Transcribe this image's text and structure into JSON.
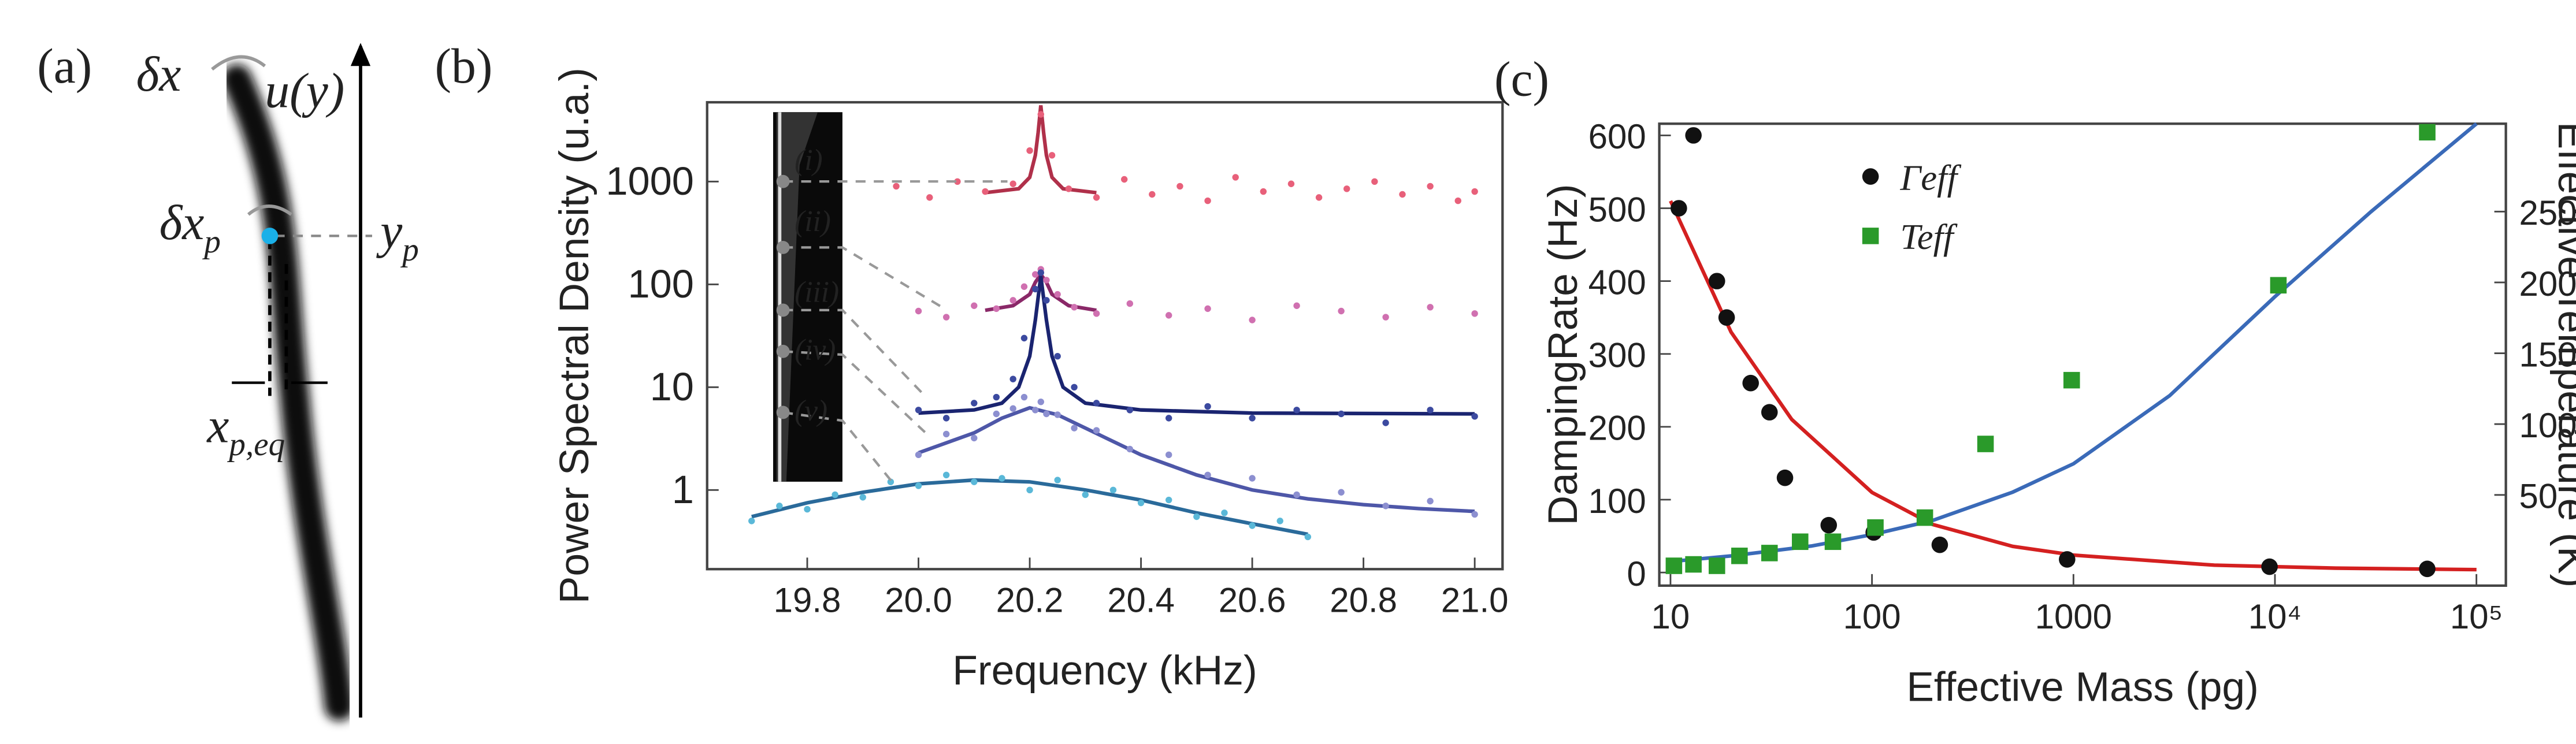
{
  "panels": {
    "a": {
      "label": "(a)",
      "dx": "δx",
      "uy": "u(y)",
      "dxp": {
        "base": "δx",
        "sub": "p"
      },
      "yp": {
        "base": "y",
        "sub": "p"
      },
      "xpeq": {
        "base": "x",
        "sub": "p,eq"
      }
    }
  },
  "chart_data": [
    {
      "type": "scatter",
      "panel": "(b)",
      "ylog": true,
      "xlabel": "Frequency (kHz)",
      "ylabel": "Power Spectral Density (u.a.)",
      "xlim": [
        19.62,
        21.05
      ],
      "ylim": [
        0.17,
        5900
      ],
      "xticks": [
        19.8,
        {
          "value": 20,
          "label": "20.0"
        },
        20.2,
        20.4,
        20.6,
        20.8,
        {
          "value": 21,
          "label": "21.0"
        }
      ],
      "yticks": [
        1,
        10,
        100,
        1000
      ],
      "inset_labels": [
        "(i)",
        "(ii)",
        "(iii)",
        "(iv)",
        "(v)"
      ],
      "series": [
        {
          "color": "#e8607a",
          "x": [
            19.96,
            20.02,
            20.07,
            20.12,
            20.17,
            20.2,
            20.22,
            20.24,
            20.27,
            20.32,
            20.37,
            20.42,
            20.47,
            20.52,
            20.57,
            20.62,
            20.67,
            20.72,
            20.77,
            20.82,
            20.87,
            20.92,
            20.97,
            21.0
          ],
          "values": [
            900,
            700,
            1000,
            800,
            950,
            2000,
            4500,
            1800,
            850,
            700,
            1050,
            750,
            900,
            650,
            1100,
            800,
            950,
            700,
            850,
            1000,
            750,
            900,
            650,
            800
          ]
        },
        {
          "color": "#d070b0",
          "x": [
            20.0,
            20.05,
            20.1,
            20.14,
            20.17,
            20.19,
            20.21,
            20.22,
            20.23,
            20.25,
            20.28,
            20.32,
            20.38,
            20.45,
            20.52,
            20.6,
            20.68,
            20.76,
            20.84,
            20.92,
            21.0
          ],
          "values": [
            55,
            48,
            62,
            58,
            70,
            95,
            125,
            140,
            110,
            80,
            60,
            52,
            65,
            50,
            58,
            45,
            62,
            55,
            48,
            60,
            52
          ]
        },
        {
          "color": "#3c4aa0",
          "x": [
            20.0,
            20.05,
            20.1,
            20.14,
            20.17,
            20.19,
            20.21,
            20.22,
            20.23,
            20.25,
            20.28,
            20.32,
            20.38,
            20.45,
            20.52,
            20.6,
            20.68,
            20.76,
            20.84,
            20.92,
            21.0
          ],
          "values": [
            6,
            5,
            7,
            8,
            12,
            30,
            90,
            130,
            70,
            20,
            10,
            7,
            6,
            5,
            6.5,
            5,
            6,
            5.5,
            4.5,
            6,
            5.2
          ]
        },
        {
          "color": "#8c8fd0",
          "x": [
            20.0,
            20.05,
            20.1,
            20.14,
            20.17,
            20.19,
            20.21,
            20.22,
            20.23,
            20.25,
            20.28,
            20.32,
            20.38,
            20.45,
            20.52,
            20.6,
            20.68,
            20.76,
            20.84,
            20.92,
            21.0
          ],
          "values": [
            2.2,
            3.5,
            3.2,
            5.5,
            6.2,
            8,
            6,
            7.2,
            5.5,
            5.4,
            4,
            3.8,
            2.5,
            2.2,
            1.4,
            1.3,
            0.9,
            0.95,
            0.7,
            0.78,
            0.58
          ]
        },
        {
          "color": "#5ab8d8",
          "x": [
            19.7,
            19.75,
            19.8,
            19.85,
            19.9,
            19.95,
            20.0,
            20.05,
            20.1,
            20.15,
            20.2,
            20.25,
            20.3,
            20.35,
            20.4,
            20.45,
            20.5,
            20.55,
            20.6,
            20.65,
            20.7
          ],
          "values": [
            0.5,
            0.7,
            0.65,
            0.9,
            0.85,
            1.2,
            1.1,
            1.4,
            1.2,
            1.3,
            1.0,
            1.25,
            0.9,
            1.0,
            0.75,
            0.8,
            0.55,
            0.6,
            0.45,
            0.5,
            0.35
          ]
        }
      ],
      "fits": [
        {
          "color": "#b0304a",
          "x": [
            20.12,
            20.18,
            20.2,
            20.21,
            20.215,
            20.22,
            20.225,
            20.23,
            20.24,
            20.26,
            20.32
          ],
          "values": [
            780,
            850,
            1100,
            1800,
            3000,
            5500,
            3000,
            1800,
            1100,
            850,
            780
          ]
        },
        {
          "color": "#8a2868",
          "x": [
            20.12,
            20.17,
            20.2,
            20.21,
            20.22,
            20.23,
            20.24,
            20.27,
            20.32
          ],
          "values": [
            56,
            62,
            80,
            105,
            125,
            105,
            80,
            62,
            56
          ]
        },
        {
          "color": "#1a2470",
          "x": [
            20.0,
            20.1,
            20.15,
            20.18,
            20.2,
            20.21,
            20.22,
            20.23,
            20.24,
            20.26,
            20.3,
            20.4,
            20.6,
            21.0
          ],
          "values": [
            5.6,
            6,
            7,
            10,
            20,
            45,
            120,
            45,
            20,
            10,
            7,
            6,
            5.6,
            5.5
          ]
        },
        {
          "color": "#4e57a8",
          "x": [
            20.0,
            20.1,
            20.15,
            20.2,
            20.25,
            20.3,
            20.4,
            20.5,
            20.6,
            20.7,
            20.8,
            20.9,
            21.0
          ],
          "values": [
            2.3,
            3.6,
            5,
            6.3,
            5.4,
            4,
            2.2,
            1.4,
            1.0,
            0.82,
            0.72,
            0.66,
            0.62
          ]
        },
        {
          "color": "#2a6a9a",
          "x": [
            19.7,
            19.8,
            19.9,
            20.0,
            20.1,
            20.2,
            20.3,
            20.4,
            20.5,
            20.6,
            20.7
          ],
          "values": [
            0.55,
            0.75,
            0.95,
            1.15,
            1.25,
            1.2,
            1.0,
            0.8,
            0.6,
            0.47,
            0.37
          ]
        }
      ]
    },
    {
      "type": "scatter",
      "panel": "(c)",
      "xlog": true,
      "xlabel": "Effective Mass (pg)",
      "ylabel": "DampingRate (Hz)",
      "y2label": "Effective Temperature (K)",
      "xlim": [
        8.8,
        140000
      ],
      "ylim": [
        -18,
        616
      ],
      "y2lim": [
        -14,
        312
      ],
      "xticks": [
        10,
        100,
        1000,
        {
          "value": 10000,
          "label": "10⁴"
        },
        {
          "value": 100000,
          "label": "10⁵"
        }
      ],
      "yticks": [
        0,
        100,
        200,
        300,
        400,
        500,
        600
      ],
      "y2ticks": [
        50,
        100,
        150,
        200,
        250
      ],
      "series": [
        {
          "name": "Γeff",
          "color": "#111111",
          "marker": "circle",
          "x": [
            11,
            13,
            17,
            19,
            25,
            31,
            37,
            61,
            102,
            217,
            930,
            9400,
            57000
          ],
          "values": [
            500,
            600,
            400,
            350,
            260,
            220,
            130,
            65,
            55,
            38,
            18,
            8,
            5
          ]
        },
        {
          "name": "Teff",
          "color": "#2a9a2a",
          "marker": "square",
          "axis": "y2",
          "x": [
            10.4,
            13,
            17,
            22,
            31,
            44,
            64,
            104,
            183,
            366,
            980,
            10400,
            57000
          ],
          "values": [
            0,
            1,
            0,
            7,
            9,
            17,
            17,
            27,
            34,
            86,
            131,
            198,
            306
          ]
        }
      ],
      "fits": [
        {
          "color": "#d42020",
          "x": [
            10,
            20,
            40,
            100,
            200,
            500,
            1000,
            5000,
            20000,
            100000
          ],
          "values": [
            510,
            330,
            210,
            110,
            66,
            36,
            24,
            10,
            6,
            4
          ]
        },
        {
          "color": "#3a6ab8",
          "axis": "y2",
          "x": [
            10,
            20,
            50,
            100,
            200,
            500,
            1000,
            3000,
            10000,
            30000,
            100000
          ],
          "values": [
            3,
            7,
            14,
            22,
            32,
            52,
            72,
            120,
            190,
            250,
            312
          ]
        }
      ]
    }
  ]
}
